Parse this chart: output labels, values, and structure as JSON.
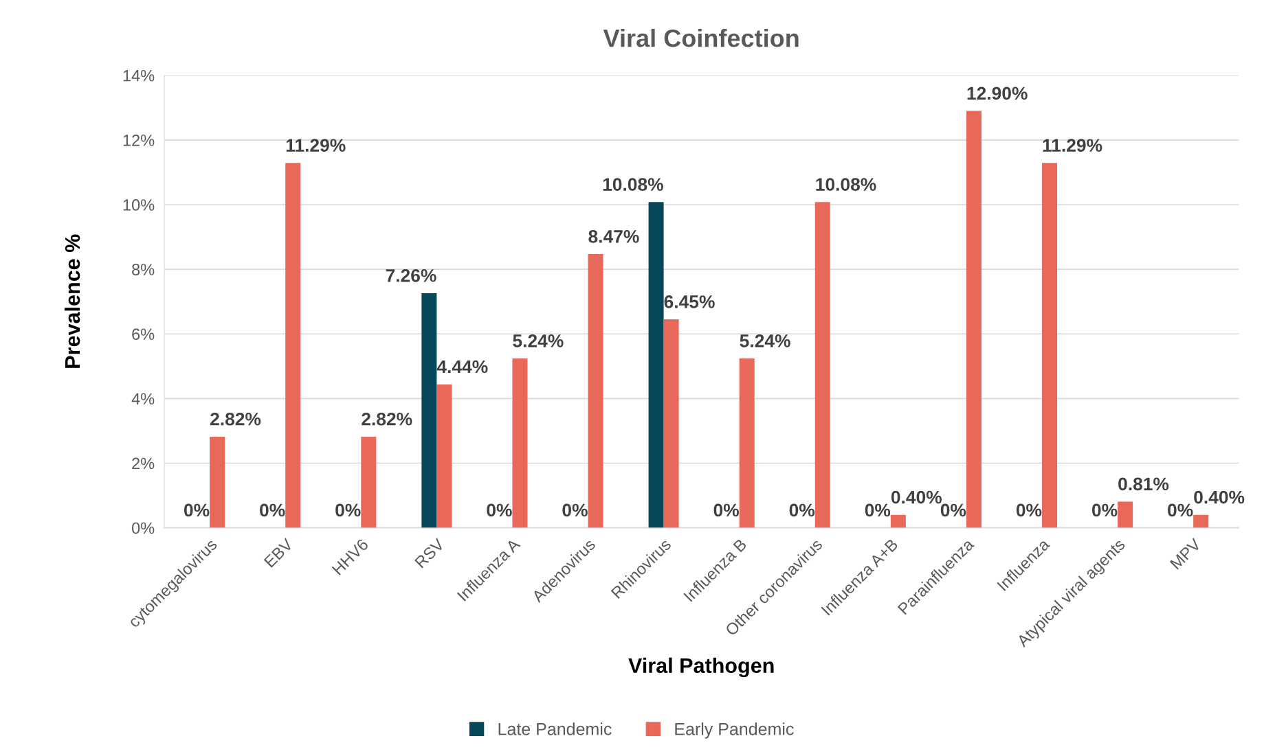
{
  "chart_data": {
    "type": "bar",
    "title": "Viral Coinfection",
    "xlabel": "Viral Pathogen",
    "ylabel": "Prevalence %",
    "categories": [
      "cytomegalovirus",
      "EBV",
      "HHV6",
      "RSV",
      "Influenza A",
      "Adenovirus",
      "Rhinovirus",
      "Influenza B",
      "Other coronavirus",
      "Influenza A+B",
      "Parainfluenza",
      "Influenza",
      "Atypical viral agents",
      "MPV"
    ],
    "series": [
      {
        "name": "Late Pandemic",
        "color": "#08475a",
        "values": [
          0,
          0,
          0,
          7.26,
          0,
          0,
          10.08,
          0,
          0,
          0,
          0,
          0,
          0,
          0
        ],
        "value_labels": [
          "0%",
          "0%",
          "0%",
          "7.26%",
          "0%",
          "0%",
          "10.08%",
          "0%",
          "0%",
          "0%",
          "0%",
          "0%",
          "0%",
          "0%"
        ]
      },
      {
        "name": "Early Pandemic",
        "color": "#e8685a",
        "values": [
          2.82,
          11.29,
          2.82,
          4.44,
          5.24,
          8.47,
          6.45,
          5.24,
          10.08,
          0.4,
          12.9,
          11.29,
          0.81,
          0.4
        ],
        "value_labels": [
          "2.82%",
          "11.29%",
          "2.82%",
          "4.44%",
          "5.24%",
          "8.47%",
          "6.45%",
          "5.24%",
          "10.08%",
          "0.40%",
          "12.90%",
          "11.29%",
          "0.81%",
          "0.40%"
        ]
      }
    ],
    "ylim": [
      0,
      14
    ],
    "yticks": [
      {
        "value": 0,
        "label": "0%"
      },
      {
        "value": 2,
        "label": "2%"
      },
      {
        "value": 4,
        "label": "4%"
      },
      {
        "value": 6,
        "label": "6%"
      },
      {
        "value": 8,
        "label": "8%"
      },
      {
        "value": 10,
        "label": "10%"
      },
      {
        "value": 12,
        "label": "12%"
      },
      {
        "value": 14,
        "label": "14%"
      }
    ],
    "grid": "y",
    "legend": "bottom"
  }
}
